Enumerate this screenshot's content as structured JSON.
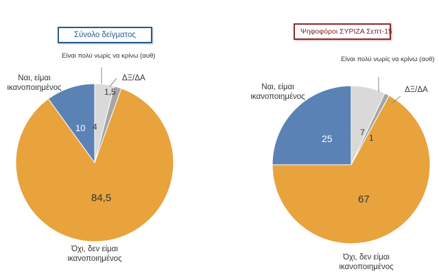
{
  "chart_data": [
    {
      "type": "pie",
      "title": "Σύνολο δείγματος",
      "slices": [
        {
          "label": "Είναι πολύ νωρίς να κρίνω (αυθ)",
          "value": 4,
          "value_label": "4",
          "color": "#d9d9d9"
        },
        {
          "label": "ΔΞ/ΔΑ",
          "value": 1.5,
          "value_label": "1,5",
          "color": "#a6a6a6"
        },
        {
          "label": "Όχι, δεν είμαι ικανοποιημένος",
          "value": 84.5,
          "value_label": "84,5",
          "color": "#e8a33d"
        },
        {
          "label": "Ναι, είμαι ικανοποιημένος",
          "value": 10,
          "value_label": "10",
          "color": "#5b82b5"
        }
      ]
    },
    {
      "type": "pie",
      "title": "Ψηφοφόροι ΣΥΡΙΖΑ Σεπτ-15",
      "slices": [
        {
          "label": "Είναι πολύ νωρίς να κρίνω (αυθ)",
          "value": 7,
          "value_label": "7",
          "color": "#d9d9d9"
        },
        {
          "label": "ΔΞ/ΔΑ",
          "value": 1,
          "value_label": "1",
          "color": "#a6a6a6"
        },
        {
          "label": "Όχι, δεν είμαι ικανοποιημένος",
          "value": 67,
          "value_label": "67",
          "color": "#e8a33d"
        },
        {
          "label": "Ναι, είμαι ικανοποιημένος",
          "value": 25,
          "value_label": "25",
          "color": "#5b82b5"
        }
      ]
    }
  ]
}
